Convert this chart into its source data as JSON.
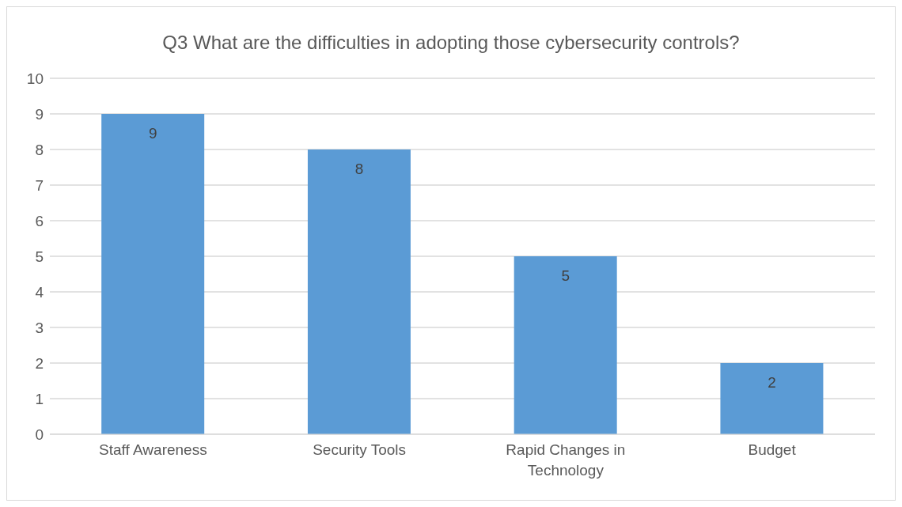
{
  "chart_data": {
    "type": "bar",
    "title": "Q3 What are the difficulties in adopting those cybersecurity controls?",
    "categories": [
      "Staff Awareness",
      "Security Tools",
      "Rapid Changes in Technology",
      "Budget"
    ],
    "values": [
      9,
      8,
      5,
      2
    ],
    "color": "#5b9bd5",
    "ylim": [
      0,
      10
    ],
    "yticks": [
      0,
      1,
      2,
      3,
      4,
      5,
      6,
      7,
      8,
      9,
      10
    ],
    "grid": "y",
    "data_labels": true
  }
}
